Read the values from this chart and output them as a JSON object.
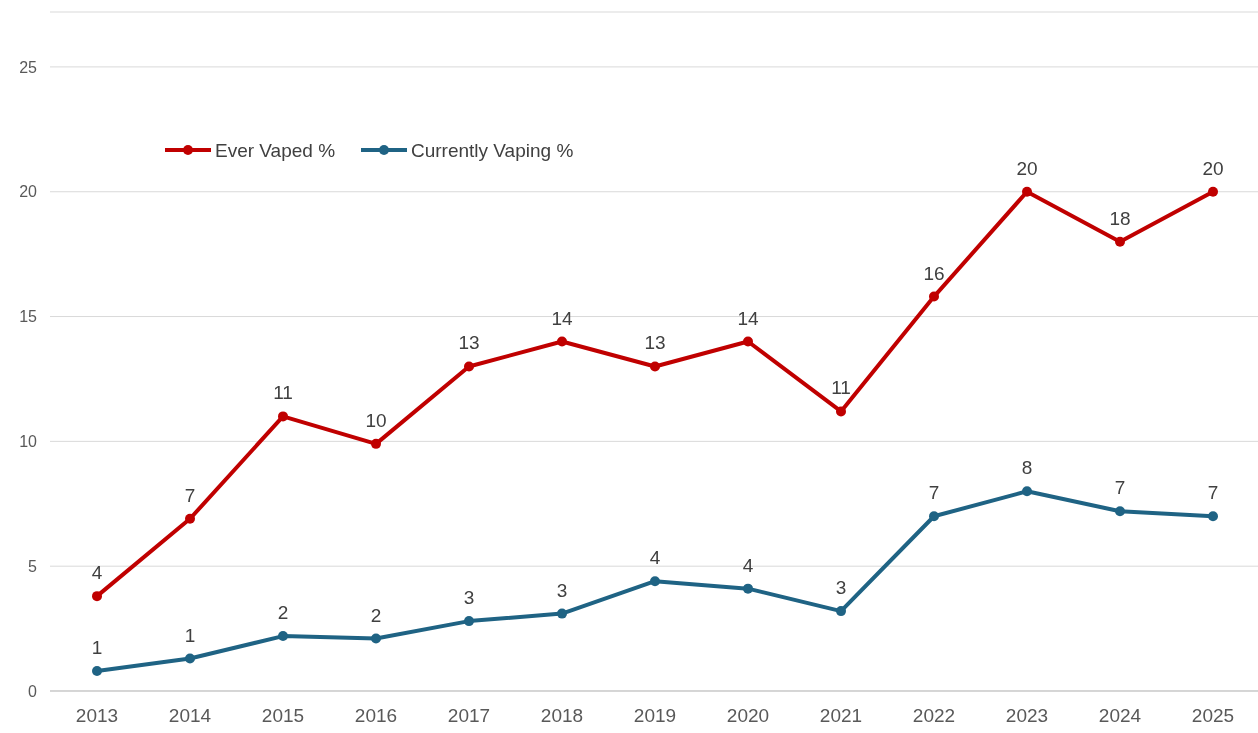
{
  "chart_data": {
    "type": "line",
    "categories": [
      "2013",
      "2014",
      "2015",
      "2016",
      "2017",
      "2018",
      "2019",
      "2020",
      "2021",
      "2022",
      "2023",
      "2024",
      "2025"
    ],
    "series": [
      {
        "name": "Ever Vaped %",
        "color": "#c00000",
        "values": [
          3.8,
          6.9,
          11.0,
          9.9,
          13.0,
          14.0,
          13.0,
          14.0,
          11.2,
          15.8,
          20.0,
          18.0,
          20.0
        ],
        "value_labels": [
          "4",
          "7",
          "11",
          "10",
          "13",
          "14",
          "13",
          "14",
          "11",
          "16",
          "20",
          "18",
          "20"
        ]
      },
      {
        "name": "Currently Vaping %",
        "color": "#1f6384",
        "values": [
          0.8,
          1.3,
          2.2,
          2.1,
          2.8,
          3.1,
          4.4,
          4.1,
          3.2,
          7.0,
          8.0,
          7.2,
          7.0
        ],
        "value_labels": [
          "1",
          "1",
          "2",
          "2",
          "3",
          "3",
          "4",
          "4",
          "3",
          "7",
          "8",
          "7",
          "7"
        ]
      }
    ],
    "ylim": [
      0,
      27.2
    ],
    "yticks": [
      0,
      5,
      10,
      15,
      20,
      25
    ],
    "grid": "y",
    "legend": "top left",
    "marker": "circle",
    "line_style": "solid"
  }
}
